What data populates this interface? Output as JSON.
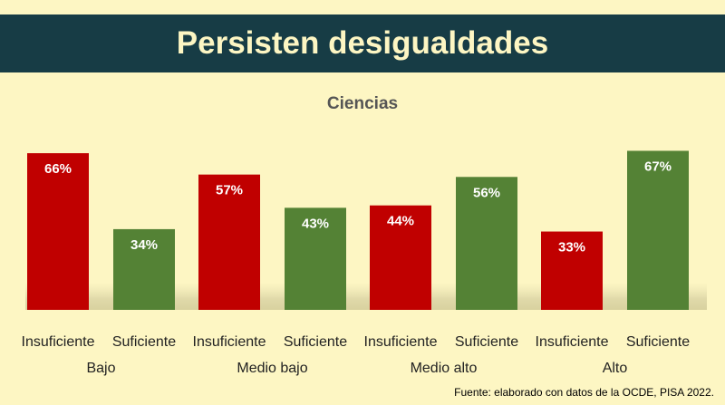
{
  "title": "Persisten desigualdades",
  "source": "Fuente: elaborado con datos de la OCDE, PISA 2022.",
  "colors": {
    "background": "#fdf6c3",
    "title_bar": "#173c45",
    "title_text": "#fdf6c3",
    "insuficiente": "#c00000",
    "suficiente": "#548235",
    "bar_label": "#ffffff"
  },
  "chart_data": {
    "type": "bar",
    "title": "Ciencias",
    "xlabel": "",
    "ylabel": "",
    "ylim": [
      0,
      100
    ],
    "grid": false,
    "value_suffix": "%",
    "categories": [
      "Bajo",
      "Medio bajo",
      "Medio alto",
      "Alto"
    ],
    "series": [
      {
        "name": "Insuficiente",
        "values": [
          66,
          57,
          44,
          33
        ]
      },
      {
        "name": "Suficiente",
        "values": [
          34,
          43,
          56,
          67
        ]
      }
    ]
  }
}
